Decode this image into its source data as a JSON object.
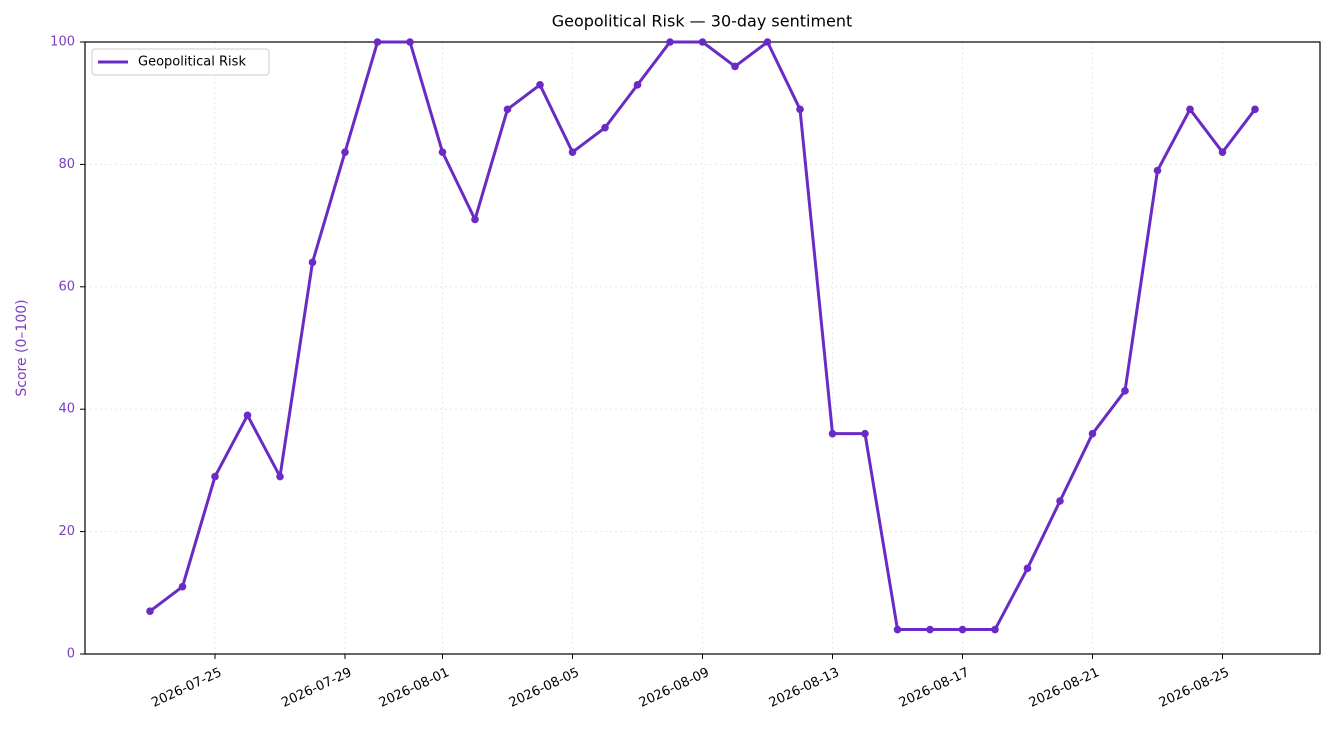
{
  "chart_data": {
    "type": "line",
    "title": "Geopolitical Risk — 30-day sentiment",
    "y_label": "Score (0–100)",
    "x": [
      "2026-07-23",
      "2026-07-24",
      "2026-07-25",
      "2026-07-26",
      "2026-07-27",
      "2026-07-28",
      "2026-07-29",
      "2026-07-30",
      "2026-07-31",
      "2026-08-01",
      "2026-08-02",
      "2026-08-03",
      "2026-08-04",
      "2026-08-05",
      "2026-08-06",
      "2026-08-07",
      "2026-08-08",
      "2026-08-09",
      "2026-08-10",
      "2026-08-11",
      "2026-08-12",
      "2026-08-13",
      "2026-08-14",
      "2026-08-15",
      "2026-08-16",
      "2026-08-17",
      "2026-08-18",
      "2026-08-19",
      "2026-08-20",
      "2026-08-21",
      "2026-08-22",
      "2026-08-23",
      "2026-08-24",
      "2026-08-25",
      "2026-08-26"
    ],
    "series": [
      {
        "name": "Geopolitical Risk",
        "color": "#6a2bc4",
        "values": [
          7,
          11,
          29,
          39,
          29,
          64,
          82,
          100,
          100,
          82,
          71,
          89,
          93,
          82,
          86,
          93,
          100,
          100,
          96,
          100,
          89,
          36,
          36,
          4,
          4,
          4,
          4,
          14,
          25,
          36,
          43,
          79,
          89,
          82,
          89
        ]
      }
    ],
    "xlim": [
      "2026-07-21",
      "2026-08-28"
    ],
    "xticks": [
      "2026-07-25",
      "2026-07-29",
      "2026-08-01",
      "2026-08-05",
      "2026-08-09",
      "2026-08-13",
      "2026-08-17",
      "2026-08-21",
      "2026-08-25"
    ],
    "ylim": [
      0,
      100
    ],
    "yticks": [
      0,
      20,
      40,
      60,
      80,
      100
    ],
    "grid": true,
    "legend": "upper left"
  }
}
